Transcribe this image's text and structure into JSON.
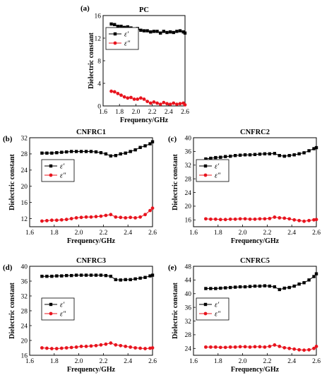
{
  "chart_data": [
    {
      "panel": "(a)",
      "title": "PC",
      "type": "line",
      "xlabel": "Frequency/GHz",
      "ylabel": "Dielectric constant",
      "xlim": [
        1.6,
        2.6
      ],
      "ylim": [
        0,
        16
      ],
      "xticks": [
        "1.6",
        "1.8",
        "2.0",
        "2.2",
        "2.4",
        "2.6"
      ],
      "yticks": [
        "0",
        "4",
        "8",
        "12",
        "16"
      ],
      "x": [
        1.7,
        1.74,
        1.78,
        1.82,
        1.86,
        1.9,
        1.94,
        1.98,
        2.02,
        2.06,
        2.1,
        2.14,
        2.18,
        2.22,
        2.26,
        2.3,
        2.34,
        2.38,
        2.42,
        2.46,
        2.5,
        2.54,
        2.58,
        2.6
      ],
      "series": [
        {
          "name": "ε′",
          "color": "#000000",
          "marker": "square",
          "values": [
            14.5,
            14.4,
            14.1,
            14.1,
            13.9,
            14.0,
            13.8,
            13.6,
            13.7,
            13.4,
            13.3,
            13.3,
            13.1,
            13.2,
            13.2,
            12.9,
            13.2,
            13.0,
            13.1,
            13.0,
            13.2,
            13.3,
            13.1,
            12.9
          ]
        },
        {
          "name": "ε″",
          "color": "#e8141e",
          "marker": "circle",
          "values": [
            2.6,
            2.5,
            2.2,
            1.9,
            1.6,
            1.4,
            1.5,
            1.2,
            1.2,
            1.4,
            1.2,
            0.8,
            0.5,
            0.7,
            0.5,
            0.3,
            0.6,
            0.4,
            0.3,
            0.5,
            0.3,
            0.4,
            0.5,
            0.2
          ]
        }
      ]
    },
    {
      "panel": "(b)",
      "title": "CNFRC1",
      "type": "line",
      "xlabel": "Frequency/GHz",
      "ylabel": "Dielectric constant",
      "xlim": [
        1.6,
        2.6
      ],
      "ylim": [
        10,
        32
      ],
      "xticks": [
        "1.6",
        "1.8",
        "2.0",
        "2.2",
        "2.4",
        "2.6"
      ],
      "yticks": [
        "12",
        "16",
        "20",
        "24",
        "28",
        "32"
      ],
      "x": [
        1.7,
        1.74,
        1.78,
        1.82,
        1.86,
        1.9,
        1.94,
        1.98,
        2.02,
        2.06,
        2.1,
        2.14,
        2.18,
        2.22,
        2.26,
        2.3,
        2.34,
        2.38,
        2.42,
        2.46,
        2.5,
        2.54,
        2.58,
        2.6
      ],
      "series": [
        {
          "name": "ε′",
          "color": "#000000",
          "marker": "square",
          "values": [
            28.2,
            28.2,
            28.2,
            28.3,
            28.4,
            28.5,
            28.6,
            28.6,
            28.6,
            28.6,
            28.6,
            28.5,
            28.3,
            28.0,
            27.5,
            27.6,
            28.0,
            28.2,
            28.6,
            29.0,
            29.6,
            30.0,
            30.5,
            31.0
          ]
        },
        {
          "name": "ε″",
          "color": "#e8141e",
          "marker": "circle",
          "values": [
            11.4,
            11.5,
            11.6,
            11.6,
            11.7,
            11.8,
            12.0,
            12.2,
            12.3,
            12.4,
            12.4,
            12.5,
            12.6,
            12.8,
            13.0,
            12.4,
            12.3,
            12.2,
            12.3,
            12.2,
            12.4,
            13.0,
            14.0,
            14.6
          ]
        }
      ]
    },
    {
      "panel": "(c)",
      "title": "CNFRC2",
      "type": "line",
      "xlabel": "Frequency/GHz",
      "ylabel": "Dielectric constant",
      "xlim": [
        1.6,
        2.6
      ],
      "ylim": [
        14,
        40
      ],
      "xticks": [
        "1.6",
        "1.8",
        "2.0",
        "2.2",
        "2.4",
        "2.6"
      ],
      "yticks": [
        "16",
        "20",
        "24",
        "28",
        "32",
        "36",
        "40"
      ],
      "x": [
        1.7,
        1.74,
        1.78,
        1.82,
        1.86,
        1.9,
        1.94,
        1.98,
        2.02,
        2.06,
        2.1,
        2.14,
        2.18,
        2.22,
        2.26,
        2.3,
        2.34,
        2.38,
        2.42,
        2.46,
        2.5,
        2.54,
        2.58,
        2.6
      ],
      "series": [
        {
          "name": "ε′",
          "color": "#000000",
          "marker": "square",
          "values": [
            33.8,
            34.0,
            34.2,
            34.3,
            34.5,
            34.6,
            34.8,
            34.9,
            35.0,
            35.0,
            35.1,
            35.2,
            35.3,
            35.3,
            35.4,
            34.8,
            34.6,
            34.8,
            35.0,
            35.3,
            35.6,
            36.2,
            36.8,
            37.1
          ]
        },
        {
          "name": "ε″",
          "color": "#e8141e",
          "marker": "circle",
          "values": [
            16.3,
            16.2,
            16.2,
            16.1,
            16.1,
            16.2,
            16.2,
            16.3,
            16.3,
            16.2,
            16.2,
            16.3,
            16.3,
            16.4,
            16.8,
            16.6,
            16.5,
            16.3,
            16.0,
            15.8,
            15.6,
            15.8,
            16.0,
            16.1
          ]
        }
      ]
    },
    {
      "panel": "(d)",
      "title": "CNFRC3",
      "type": "line",
      "xlabel": "Frequency/GHz",
      "ylabel": "Dielectric constant",
      "xlim": [
        1.6,
        2.6
      ],
      "ylim": [
        16,
        40
      ],
      "xticks": [
        "1.6",
        "1.8",
        "2.0",
        "2.2",
        "2.4",
        "2.6"
      ],
      "yticks": [
        "16",
        "20",
        "24",
        "28",
        "32",
        "36",
        "40"
      ],
      "x": [
        1.7,
        1.74,
        1.78,
        1.82,
        1.86,
        1.9,
        1.94,
        1.98,
        2.02,
        2.06,
        2.1,
        2.14,
        2.18,
        2.22,
        2.26,
        2.3,
        2.34,
        2.38,
        2.42,
        2.46,
        2.5,
        2.54,
        2.58,
        2.6
      ],
      "series": [
        {
          "name": "ε′",
          "color": "#000000",
          "marker": "square",
          "values": [
            37.3,
            37.3,
            37.3,
            37.4,
            37.4,
            37.5,
            37.5,
            37.6,
            37.6,
            37.6,
            37.6,
            37.6,
            37.6,
            37.5,
            37.3,
            36.4,
            36.3,
            36.4,
            36.4,
            36.6,
            36.8,
            37.0,
            37.4,
            37.6
          ]
        },
        {
          "name": "ε″",
          "color": "#e8141e",
          "marker": "circle",
          "values": [
            18.0,
            17.9,
            17.8,
            17.8,
            17.9,
            18.0,
            18.1,
            18.2,
            18.4,
            18.4,
            18.5,
            18.6,
            18.8,
            19.0,
            19.3,
            18.8,
            18.6,
            18.4,
            18.2,
            18.0,
            17.9,
            17.8,
            17.9,
            18.0
          ]
        }
      ]
    },
    {
      "panel": "(e)",
      "title": "CNFRC5",
      "type": "line",
      "xlabel": "Frequency/GHz",
      "ylabel": "Dielectric constant",
      "xlim": [
        1.6,
        2.6
      ],
      "ylim": [
        22,
        48
      ],
      "xticks": [
        "1.6",
        "1.8",
        "2.0",
        "2.2",
        "2.4",
        "2.6"
      ],
      "yticks": [
        "24",
        "28",
        "32",
        "36",
        "40",
        "44",
        "48"
      ],
      "x": [
        1.7,
        1.74,
        1.78,
        1.82,
        1.86,
        1.9,
        1.94,
        1.98,
        2.02,
        2.06,
        2.1,
        2.14,
        2.18,
        2.22,
        2.26,
        2.3,
        2.34,
        2.38,
        2.42,
        2.46,
        2.5,
        2.54,
        2.58,
        2.6
      ],
      "series": [
        {
          "name": "ε′",
          "color": "#000000",
          "marker": "square",
          "values": [
            41.5,
            41.5,
            41.5,
            41.6,
            41.7,
            41.8,
            41.9,
            42.0,
            42.0,
            42.1,
            42.2,
            42.2,
            42.3,
            42.2,
            42.0,
            41.2,
            41.6,
            41.8,
            42.2,
            42.8,
            43.2,
            44.0,
            45.0,
            45.8
          ]
        },
        {
          "name": "ε″",
          "color": "#e8141e",
          "marker": "circle",
          "values": [
            24.4,
            24.4,
            24.4,
            24.3,
            24.3,
            24.4,
            24.4,
            24.5,
            24.5,
            24.4,
            24.5,
            24.5,
            24.4,
            24.6,
            25.0,
            24.6,
            24.2,
            24.0,
            23.8,
            23.6,
            23.5,
            23.6,
            24.0,
            24.6
          ]
        }
      ]
    }
  ]
}
